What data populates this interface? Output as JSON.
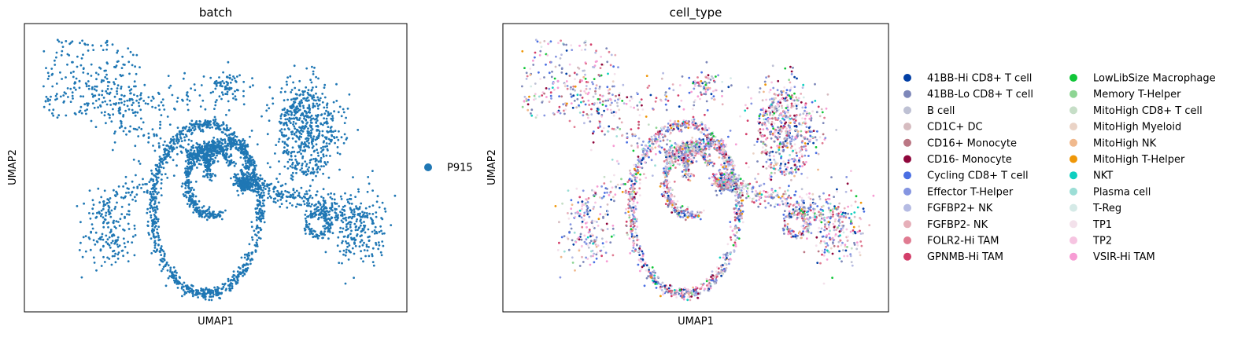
{
  "chart_data": [
    {
      "type": "scatter",
      "title": "batch",
      "xlabel": "UMAP1",
      "ylabel": "UMAP2",
      "grid": false,
      "legend_position": "right",
      "series": [
        {
          "name": "P915",
          "color": "#1f77b4"
        }
      ]
    },
    {
      "type": "scatter",
      "title": "cell_type",
      "xlabel": "UMAP1",
      "ylabel": "UMAP2",
      "grid": false,
      "legend_position": "right",
      "series": [
        {
          "name": "41BB-Hi CD8+ T cell",
          "color": "#023fa5"
        },
        {
          "name": "41BB-Lo CD8+ T cell",
          "color": "#7d87b9"
        },
        {
          "name": "B cell",
          "color": "#bec1d4"
        },
        {
          "name": "CD1C+ DC",
          "color": "#d6bcc0"
        },
        {
          "name": "CD16+ Monocyte",
          "color": "#bb7784"
        },
        {
          "name": "CD16- Monocyte",
          "color": "#8e063b"
        },
        {
          "name": "Cycling CD8+ T cell",
          "color": "#4a6fe3"
        },
        {
          "name": "Effector T-Helper",
          "color": "#8595e1"
        },
        {
          "name": "FGFBP2+ NK",
          "color": "#b5bbe3"
        },
        {
          "name": "FGFBP2- NK",
          "color": "#e6afb9"
        },
        {
          "name": "FOLR2-Hi TAM",
          "color": "#e07b91"
        },
        {
          "name": "GPNMB-Hi TAM",
          "color": "#d33f6a"
        },
        {
          "name": "LowLibSize Macrophage",
          "color": "#11c638"
        },
        {
          "name": "Memory T-Helper",
          "color": "#8dd593"
        },
        {
          "name": "MitoHigh CD8+ T cell",
          "color": "#c6dec7"
        },
        {
          "name": "MitoHigh Myeloid",
          "color": "#ead3c6"
        },
        {
          "name": "MitoHigh NK",
          "color": "#f0b98d"
        },
        {
          "name": "MitoHigh T-Helper",
          "color": "#ef9708"
        },
        {
          "name": "NKT",
          "color": "#0fcfc0"
        },
        {
          "name": "Plasma cell",
          "color": "#9cded6"
        },
        {
          "name": "T-Reg",
          "color": "#d5eae7"
        },
        {
          "name": "TP1",
          "color": "#f3e1eb"
        },
        {
          "name": "TP2",
          "color": "#f6c4e1"
        },
        {
          "name": "VSIR-Hi TAM",
          "color": "#f79cd4"
        }
      ]
    }
  ]
}
